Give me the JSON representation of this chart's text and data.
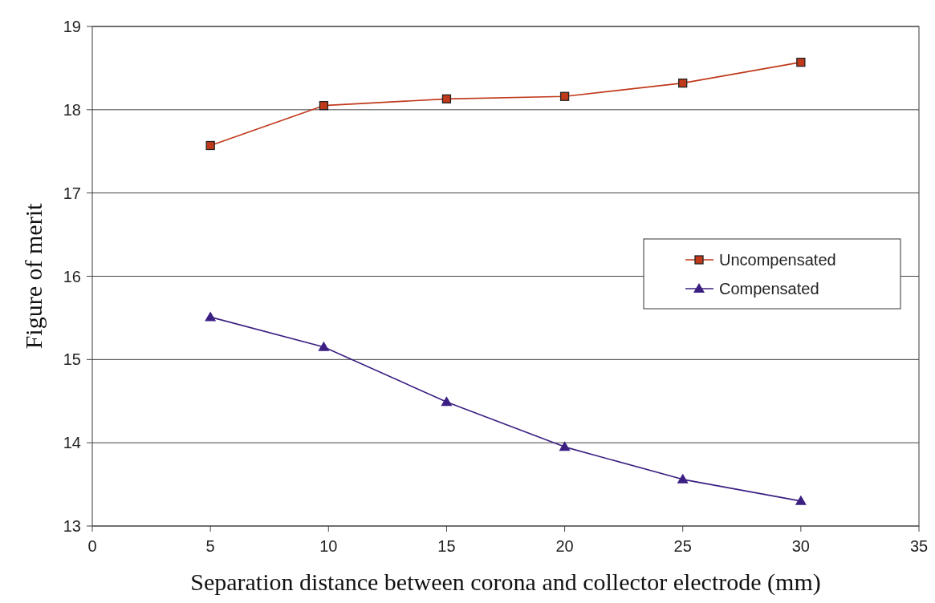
{
  "chart_data": {
    "type": "line",
    "xlabel": "Separation distance between corona and collector electrode (mm)",
    "ylabel": "Figure of merit",
    "xlim": [
      0,
      35
    ],
    "xticks": [
      0,
      5,
      10,
      15,
      20,
      25,
      30,
      35
    ],
    "ylim": [
      13,
      19
    ],
    "yticks": [
      13,
      14,
      15,
      16,
      17,
      18,
      19
    ],
    "grid": "y",
    "legend": "right",
    "series": [
      {
        "name": "Uncompensated",
        "color": "#c0391b",
        "marker": "square",
        "x": [
          5,
          9.8,
          15,
          20,
          25,
          30
        ],
        "values": [
          17.57,
          18.05,
          18.13,
          18.16,
          18.32,
          18.57
        ]
      },
      {
        "name": "Compensated",
        "color": "#3b1f82",
        "marker": "triangle",
        "x": [
          5,
          9.8,
          15,
          20,
          25,
          30
        ],
        "values": [
          15.51,
          15.15,
          14.49,
          13.95,
          13.56,
          13.3
        ]
      }
    ]
  }
}
